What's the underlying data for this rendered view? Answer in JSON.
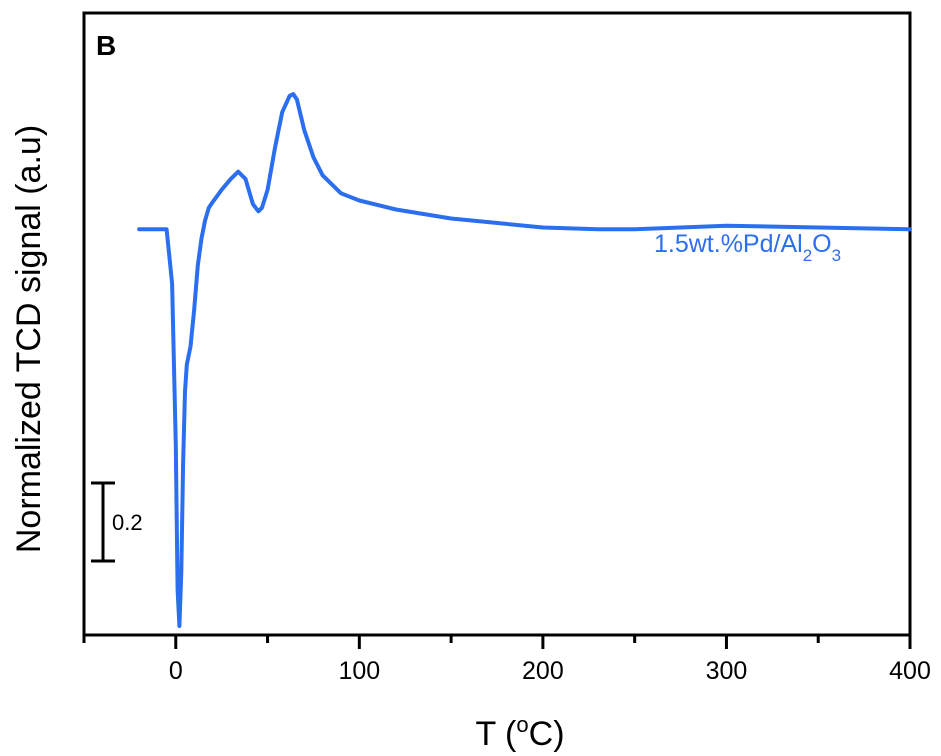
{
  "chart_data": {
    "type": "line",
    "panel_label": "B",
    "xlabel_main": "T (",
    "xlabel_sup": "o",
    "xlabel_end": "C)",
    "ylabel": "Normalized TCD signal (a.u)",
    "xlim": [
      -50,
      400
    ],
    "ylim": [
      -2.25,
      1.2
    ],
    "x_ticks": [
      0,
      100,
      200,
      300,
      400
    ],
    "x_minor_ticks": [
      -50,
      50,
      150,
      250,
      350
    ],
    "grid": false,
    "scale_bar_label": "0.2",
    "series": [
      {
        "label_main": "1.5wt.%Pd/Al",
        "label_sub1": "2",
        "label_mid": "O",
        "label_sub2": "3",
        "color": "#2b6ef0",
        "x": [
          -20,
          -10,
          -5,
          -2,
          0,
          1,
          2,
          3,
          4,
          5,
          6,
          8,
          10,
          12,
          14,
          16,
          18,
          20,
          25,
          30,
          34,
          38,
          42,
          45,
          47,
          50,
          54,
          58,
          62,
          64,
          66,
          70,
          75,
          80,
          90,
          100,
          120,
          150,
          200,
          230,
          250,
          300,
          350,
          400
        ],
        "y": [
          0.0,
          0.0,
          0.0,
          -0.3,
          -1.2,
          -2.0,
          -2.2,
          -1.9,
          -1.3,
          -0.9,
          -0.75,
          -0.65,
          -0.45,
          -0.2,
          -0.05,
          0.05,
          0.12,
          0.15,
          0.22,
          0.28,
          0.32,
          0.28,
          0.14,
          0.1,
          0.12,
          0.22,
          0.45,
          0.65,
          0.74,
          0.75,
          0.72,
          0.55,
          0.4,
          0.3,
          0.2,
          0.16,
          0.11,
          0.06,
          0.01,
          0.0,
          0.0,
          0.02,
          0.01,
          0.0
        ]
      }
    ]
  }
}
